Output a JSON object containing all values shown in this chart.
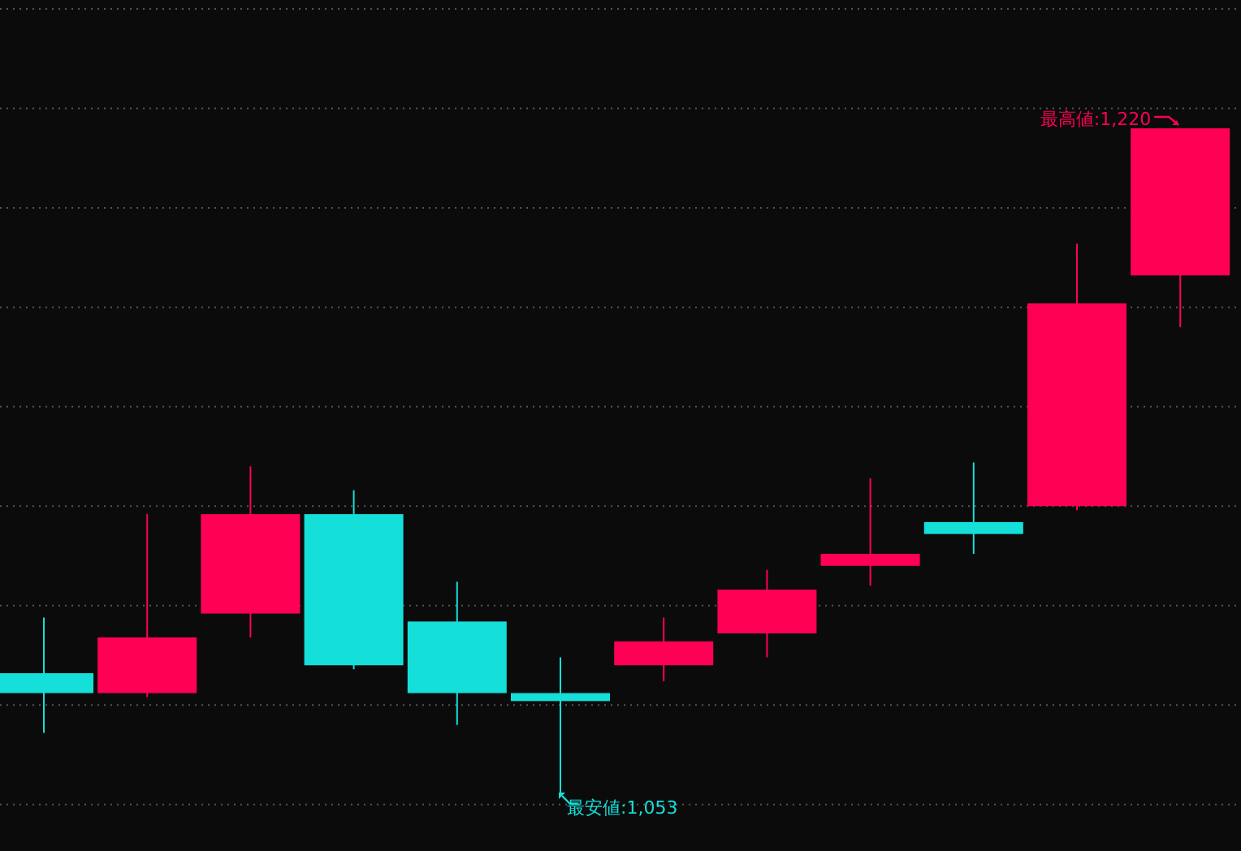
{
  "chart_data": {
    "type": "candlestick",
    "categories": [
      null,
      null,
      null,
      null,
      null,
      null,
      null,
      null,
      null,
      null,
      null,
      null
    ],
    "ohlc": [
      [
        1083,
        1097,
        1068,
        1078
      ],
      [
        1078,
        1123,
        1077,
        1092
      ],
      [
        1098,
        1135,
        1092,
        1123
      ],
      [
        1123,
        1129,
        1084,
        1085
      ],
      [
        1096,
        1106,
        1070,
        1078
      ],
      [
        1078,
        1087,
        1053,
        1076
      ],
      [
        1085,
        1097,
        1081,
        1091
      ],
      [
        1093,
        1109,
        1087,
        1104
      ],
      [
        1110,
        1132,
        1105,
        1113
      ],
      [
        1121,
        1136,
        1113,
        1118
      ],
      [
        1125,
        1191,
        1124,
        1176
      ],
      [
        1183,
        1220,
        1170,
        1220
      ]
    ],
    "colors": [
      "#14dfd9",
      "#ff0055",
      "#ff0055",
      "#14dfd9",
      "#14dfd9",
      "#14dfd9",
      "#ff0055",
      "#ff0055",
      "#ff0055",
      "#14dfd9",
      "#ff0055",
      "#ff0055"
    ],
    "yticks": [
      {
        "value": 1250,
        "label": null
      },
      {
        "value": 1225,
        "label": null
      },
      {
        "value": 1200,
        "label": null
      },
      {
        "value": 1175,
        "label": null
      },
      {
        "value": 1150,
        "label": null
      },
      {
        "value": 1125,
        "label": null
      },
      {
        "value": 1100,
        "label": null
      },
      {
        "value": 1075,
        "label": null
      },
      {
        "value": 1050,
        "label": null
      }
    ],
    "grid": "y",
    "annotations": [
      "最高値:1,220",
      "最安値:1,053"
    ]
  }
}
